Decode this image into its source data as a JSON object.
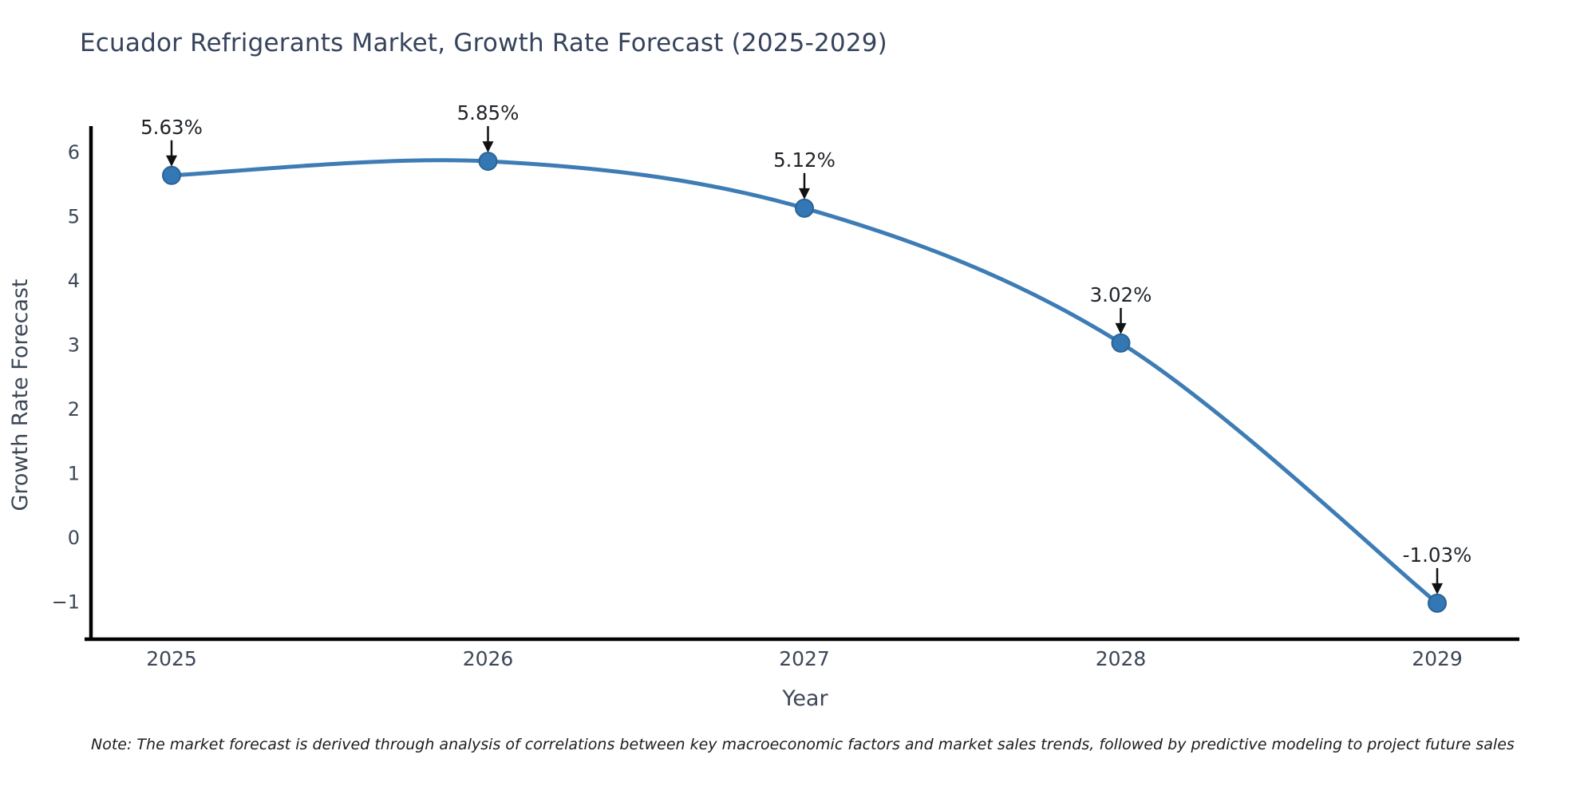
{
  "note": "Note: The market forecast is derived through analysis of correlations between key macroeconomic factors and market sales trends, followed by predictive modeling to project future sales",
  "chart_data": {
    "type": "line",
    "title": "Ecuador Refrigerants Market, Growth Rate Forecast (2025-2029)",
    "xlabel": "Year",
    "ylabel": "Growth Rate Forecast",
    "categories": [
      "2025",
      "2026",
      "2027",
      "2028",
      "2029"
    ],
    "series": [
      {
        "name": "Growth Rate Forecast",
        "values": [
          5.63,
          5.85,
          5.12,
          3.02,
          -1.03
        ]
      }
    ],
    "point_labels": [
      "5.63%",
      "5.85%",
      "5.12%",
      "3.02%",
      "-1.03%"
    ],
    "yticks": {
      "values": [
        6,
        5,
        4,
        3,
        2,
        1,
        0,
        -1
      ],
      "labels": [
        "6",
        "5",
        "4",
        "3",
        "2",
        "1",
        "0",
        "−1"
      ]
    },
    "ylim": [
      -1.6,
      6.4
    ],
    "grid": false,
    "legend": "none",
    "line_shape": "spline",
    "marker": "circle",
    "annotation_style": "value-label-with-down-arrow",
    "colors": {
      "line": "#3d7cb4",
      "marker_fill": "#3377b4",
      "marker_stroke": "#2a6496",
      "annotation_text": "#1f2328",
      "arrow": "#111111",
      "axis": "#000000",
      "tick_text": "#3d4757",
      "title_text": "#36435c"
    }
  }
}
